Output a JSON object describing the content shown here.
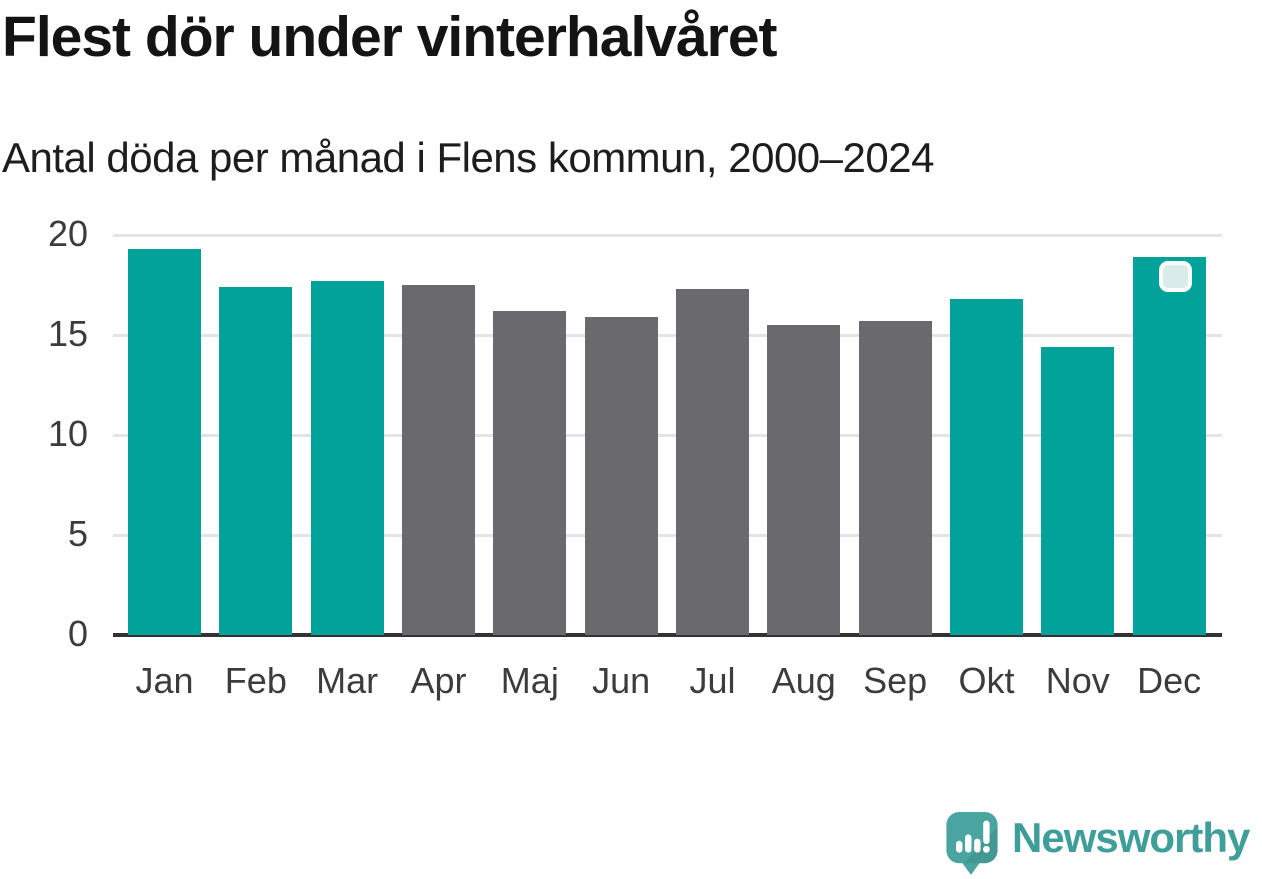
{
  "header": {
    "title": "Flest dör under vinterhalvåret",
    "subtitle": "Antal döda per månad i Flens kommun, 2000–2024"
  },
  "chart_data": {
    "type": "bar",
    "title": "Flest dör under vinterhalvåret",
    "subtitle": "Antal döda per månad i Flens kommun, 2000–2024",
    "categories": [
      "Jan",
      "Feb",
      "Mar",
      "Apr",
      "Maj",
      "Jun",
      "Jul",
      "Aug",
      "Sep",
      "Okt",
      "Nov",
      "Dec"
    ],
    "values": [
      19.3,
      17.4,
      17.7,
      17.5,
      16.2,
      15.9,
      17.3,
      15.5,
      15.7,
      16.8,
      14.4,
      18.9
    ],
    "xlabel": "",
    "ylabel": "",
    "ylim": [
      0,
      20
    ],
    "yticks": [
      0,
      5,
      10,
      15,
      20
    ],
    "grid": true,
    "legend": "none",
    "winter_months": [
      "Jan",
      "Feb",
      "Mar",
      "Okt",
      "Nov",
      "Dec"
    ],
    "colors": {
      "winter_bar": "#00a29a",
      "summer_bar": "#6a6a6e",
      "gridline": "#e4e4e4",
      "axis": "#333333"
    },
    "highlighted_bar": "Dec",
    "highlight_marker": {
      "fill": "#d9eceb",
      "border": "#fbfdfd"
    }
  },
  "footer": {
    "brand": "Newsworthy",
    "brand_color": "#3f9e99",
    "logo_icon": "newsworthy-speech-bubble-chart-icon"
  }
}
